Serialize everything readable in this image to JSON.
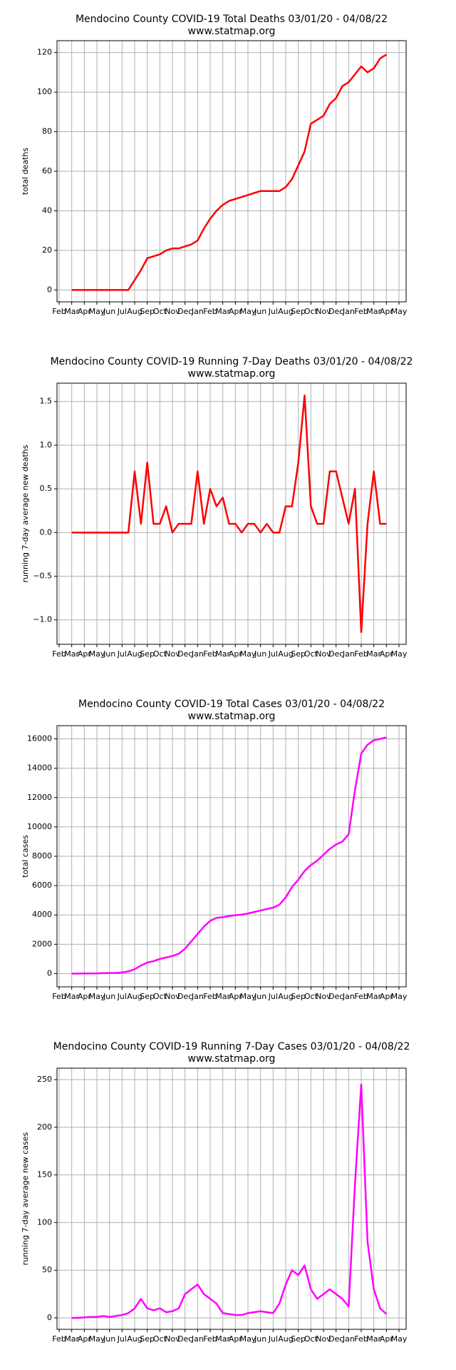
{
  "chart_data": [
    {
      "type": "line",
      "title": "Mendocino County COVID-19 Total Deaths 03/01/20 - 04/08/22",
      "subtitle": "www.statmap.org",
      "ylabel": "total deaths",
      "color": "#ff0000",
      "grid": true,
      "categories": [
        "Feb",
        null,
        "Mar",
        null,
        "Apr",
        null,
        "May",
        null,
        "Jun",
        null,
        "Jul",
        null,
        "Aug",
        null,
        "Sep",
        null,
        "Oct",
        null,
        "Nov",
        null,
        "Dec",
        null,
        "Jan",
        null,
        "Feb",
        null,
        "Mar",
        null,
        "Apr",
        null,
        "May",
        null,
        "Jun",
        null,
        "Jul",
        null,
        "Aug",
        null,
        "Sep",
        null,
        "Oct",
        null,
        "Nov",
        null,
        "Dec",
        null,
        "Jan",
        null,
        "Feb",
        null,
        "Mar",
        null,
        "Apr",
        null,
        "May"
      ],
      "values": [
        null,
        null,
        0,
        0,
        0,
        0,
        0,
        0,
        0,
        0,
        0,
        0,
        5,
        10,
        16,
        17,
        18,
        20,
        21,
        21,
        22,
        23,
        25,
        31,
        36,
        40,
        43,
        45,
        46,
        47,
        48,
        49,
        50,
        50,
        50,
        50,
        52,
        56,
        63,
        70,
        84,
        86,
        88,
        94,
        97,
        103,
        105,
        109,
        113,
        110,
        112,
        117,
        119,
        null,
        null
      ],
      "ylim": [
        -6,
        126
      ],
      "yticks": [
        0,
        20,
        40,
        60,
        80,
        100,
        120
      ]
    },
    {
      "type": "line",
      "title": "Mendocino County COVID-19 Running 7-Day Deaths 03/01/20 - 04/08/22",
      "subtitle": "www.statmap.org",
      "ylabel": "running 7-day average new deaths",
      "color": "#ff0000",
      "grid": true,
      "categories": [
        "Feb",
        null,
        "Mar",
        null,
        "Apr",
        null,
        "May",
        null,
        "Jun",
        null,
        "Jul",
        null,
        "Aug",
        null,
        "Sep",
        null,
        "Oct",
        null,
        "Nov",
        null,
        "Dec",
        null,
        "Jan",
        null,
        "Feb",
        null,
        "Mar",
        null,
        "Apr",
        null,
        "May",
        null,
        "Jun",
        null,
        "Jul",
        null,
        "Aug",
        null,
        "Sep",
        null,
        "Oct",
        null,
        "Nov",
        null,
        "Dec",
        null,
        "Jan",
        null,
        "Feb",
        null,
        "Mar",
        null,
        "Apr",
        null,
        "May"
      ],
      "values": [
        null,
        null,
        0,
        0,
        0,
        0,
        0,
        0,
        0,
        0,
        0,
        0,
        0.7,
        0.1,
        0.8,
        0.1,
        0.1,
        0.3,
        0,
        0.1,
        0.1,
        0.1,
        0.7,
        0.1,
        0.5,
        0.3,
        0.4,
        0.1,
        0.1,
        0,
        0.1,
        0.1,
        0,
        0.1,
        0,
        0,
        0.3,
        0.3,
        0.8,
        1.57,
        0.3,
        0.1,
        0.1,
        0.7,
        0.7,
        0.4,
        0.1,
        0.5,
        -1.14,
        0.1,
        0.7,
        0.1,
        0.1,
        null,
        null
      ],
      "ylim": [
        -1.28,
        1.71
      ],
      "yticks": [
        {
          "value": -1,
          "label": "−1.0"
        },
        {
          "value": -0.5,
          "label": "−0.5"
        },
        {
          "value": 0,
          "label": "0.0"
        },
        0.5,
        {
          "value": 1,
          "label": "1.0"
        },
        1.5
      ]
    },
    {
      "type": "line",
      "title": "Mendocino County COVID-19 Total Cases 03/01/20 - 04/08/22",
      "subtitle": "www.statmap.org",
      "ylabel": "total cases",
      "color": "#ff00ff",
      "grid": true,
      "categories": [
        "Feb",
        null,
        "Mar",
        null,
        "Apr",
        null,
        "May",
        null,
        "Jun",
        null,
        "Jul",
        null,
        "Aug",
        null,
        "Sep",
        null,
        "Oct",
        null,
        "Nov",
        null,
        "Dec",
        null,
        "Jan",
        null,
        "Feb",
        null,
        "Mar",
        null,
        "Apr",
        null,
        "May",
        null,
        "Jun",
        null,
        "Jul",
        null,
        "Aug",
        null,
        "Sep",
        null,
        "Oct",
        null,
        "Nov",
        null,
        "Dec",
        null,
        "Jan",
        null,
        "Feb",
        null,
        "Mar",
        null,
        "Apr",
        null,
        "May"
      ],
      "values": [
        null,
        null,
        0,
        5,
        10,
        15,
        20,
        30,
        40,
        50,
        80,
        150,
        300,
        550,
        750,
        850,
        1000,
        1100,
        1200,
        1350,
        1700,
        2200,
        2700,
        3200,
        3600,
        3800,
        3850,
        3920,
        3980,
        4020,
        4100,
        4200,
        4300,
        4400,
        4500,
        4700,
        5200,
        5900,
        6400,
        7000,
        7400,
        7700,
        8100,
        8500,
        8800,
        9000,
        9500,
        12500,
        15000,
        15600,
        15900,
        16000,
        16100,
        null,
        null
      ],
      "ylim": [
        -900,
        16900
      ],
      "yticks": [
        0,
        2000,
        4000,
        6000,
        8000,
        10000,
        12000,
        14000,
        16000
      ]
    },
    {
      "type": "line",
      "title": "Mendocino County COVID-19 Running 7-Day Cases 03/01/20 - 04/08/22",
      "subtitle": "www.statmap.org",
      "ylabel": "running 7-day average new cases",
      "color": "#ff00ff",
      "grid": true,
      "categories": [
        "Feb",
        null,
        "Mar",
        null,
        "Apr",
        null,
        "May",
        null,
        "Jun",
        null,
        "Jul",
        null,
        "Aug",
        null,
        "Sep",
        null,
        "Oct",
        null,
        "Nov",
        null,
        "Dec",
        null,
        "Jan",
        null,
        "Feb",
        null,
        "Mar",
        null,
        "Apr",
        null,
        "May",
        null,
        "Jun",
        null,
        "Jul",
        null,
        "Aug",
        null,
        "Sep",
        null,
        "Oct",
        null,
        "Nov",
        null,
        "Dec",
        null,
        "Jan",
        null,
        "Feb",
        null,
        "Mar",
        null,
        "Apr",
        null,
        "May"
      ],
      "values": [
        null,
        null,
        0,
        0,
        0.5,
        1,
        1,
        2,
        1,
        2,
        3,
        5,
        10,
        20,
        10,
        8,
        10,
        6,
        7,
        10,
        25,
        30,
        35,
        25,
        20,
        15,
        5,
        4,
        3,
        3,
        5,
        6,
        7,
        6,
        5,
        15,
        35,
        50,
        45,
        55,
        30,
        20,
        25,
        30,
        25,
        20,
        12,
        140,
        245,
        80,
        30,
        10,
        4,
        null,
        null
      ],
      "ylim": [
        -12,
        262
      ],
      "yticks": [
        0,
        50,
        100,
        150,
        200,
        250
      ]
    }
  ]
}
